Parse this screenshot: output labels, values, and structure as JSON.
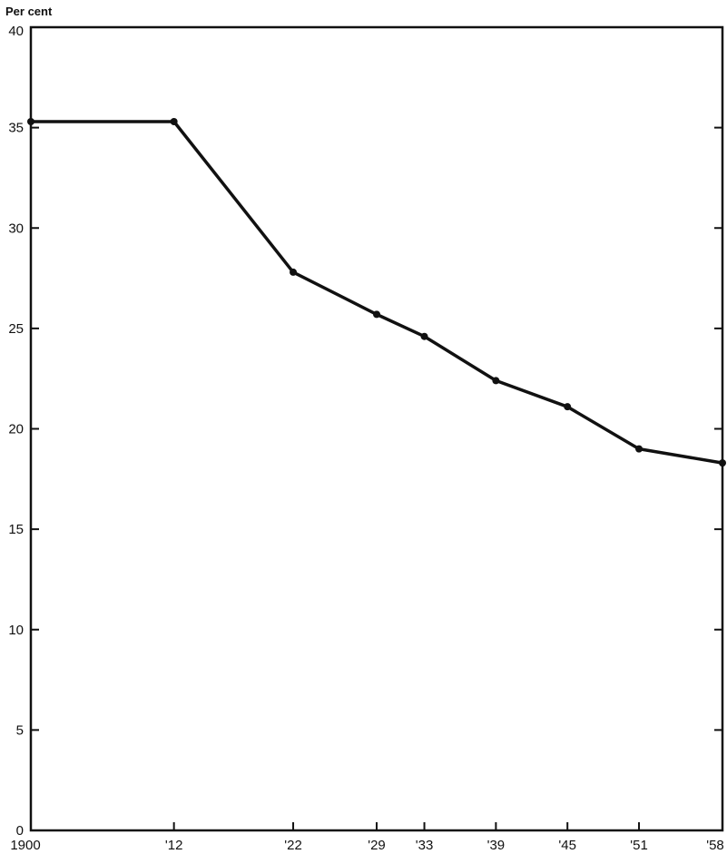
{
  "chart_data": {
    "type": "line",
    "title": "",
    "xlabel": "",
    "ylabel": "Per cent",
    "x": [
      1900,
      1912,
      1922,
      1929,
      1933,
      1939,
      1945,
      1951,
      1958
    ],
    "x_tick_labels": [
      "1900",
      "'12",
      "'22",
      "'29",
      "'33",
      "'39",
      "'45",
      "'51",
      "'58"
    ],
    "y_ticks": [
      0,
      5,
      10,
      15,
      20,
      25,
      30,
      35,
      40
    ],
    "xlim": [
      1900,
      1958
    ],
    "ylim": [
      0,
      40
    ],
    "grid": false,
    "series": [
      {
        "values": [
          35.3,
          35.3,
          27.8,
          25.7,
          24.6,
          22.4,
          21.1,
          19.0,
          18.3
        ]
      }
    ]
  }
}
